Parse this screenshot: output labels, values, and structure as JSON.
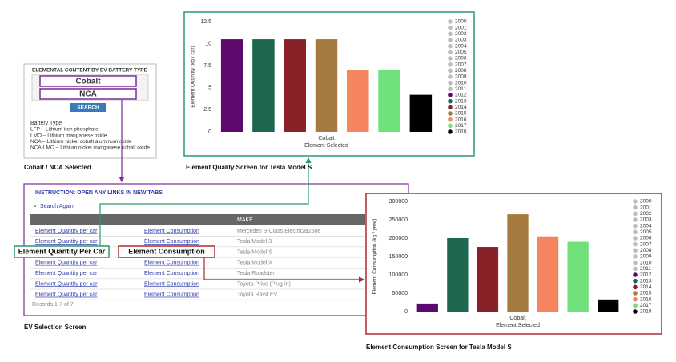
{
  "search_panel": {
    "title": "ELEMENTAL CONTENT BY EV BATTERY TYPE",
    "fields": [
      "Cobalt",
      "NCA"
    ],
    "button": "SEARCH",
    "legend_title": "Battery Type",
    "legend_items": [
      "LFP – Lithium iron phosphate",
      "LMO – Lithium manganese oxide",
      "NCA – Lithium nickel cobalt aluminum oxide",
      "NCA-LMO – Lithium nickel manganese cobalt oxide"
    ],
    "caption": "Cobalt / NCA Selected"
  },
  "table_panel": {
    "instruction": "INSTRUCTION:  OPEN ANY LINKS IN NEW TABS",
    "search_again": "Search Again",
    "header_make": "MAKE",
    "rows": [
      [
        "Element Quantity per car",
        "Element Consumption",
        "Mercedes B-Class Electric/B250e"
      ],
      [
        "Element Quantity per car",
        "Element Consumption",
        "Tesla Model 3"
      ],
      [
        "Element Quantity per car",
        "Element Consumption",
        "Tesla Model S"
      ],
      [
        "Element Quantity per car",
        "Element Consumption",
        "Tesla Model X"
      ],
      [
        "Element Quantity per car",
        "Element Consumption",
        "Tesla Roadster"
      ],
      [
        "Element Quantity per car",
        "Element Consumption",
        "Toyota Prius (Plug-in)"
      ],
      [
        "Element Quantity per car",
        "Element Consumption",
        "Toyota Rav4 EV"
      ]
    ],
    "footer": "Records 1-7 of 7",
    "caption": "EV Selection Screen"
  },
  "callouts": [
    "Element Quantity Per Car",
    "Element Consumption"
  ],
  "chart_data": [
    {
      "type": "bar",
      "caption": "Element Quality Screen for Tesla Model S",
      "categories": [
        "Cobalt"
      ],
      "x_label": "Element Selected",
      "y_label": "Element Quantity (kg / car)",
      "ylim": [
        0,
        12.5
      ],
      "yticks": [
        0,
        2.5,
        5,
        7.5,
        10,
        12.5
      ],
      "grid": false,
      "legend": "right",
      "series": [
        {
          "name": "2000",
          "color": "#bdbdbd",
          "values": [
            null
          ]
        },
        {
          "name": "2001",
          "color": "#bdbdbd",
          "values": [
            null
          ]
        },
        {
          "name": "2002",
          "color": "#bdbdbd",
          "values": [
            null
          ]
        },
        {
          "name": "2003",
          "color": "#bdbdbd",
          "values": [
            null
          ]
        },
        {
          "name": "2004",
          "color": "#bdbdbd",
          "values": [
            null
          ]
        },
        {
          "name": "2005",
          "color": "#bdbdbd",
          "values": [
            null
          ]
        },
        {
          "name": "2006",
          "color": "#bdbdbd",
          "values": [
            null
          ]
        },
        {
          "name": "2007",
          "color": "#bdbdbd",
          "values": [
            null
          ]
        },
        {
          "name": "2008",
          "color": "#bdbdbd",
          "values": [
            null
          ]
        },
        {
          "name": "2009",
          "color": "#bdbdbd",
          "values": [
            null
          ]
        },
        {
          "name": "2010",
          "color": "#bdbdbd",
          "values": [
            null
          ]
        },
        {
          "name": "2011",
          "color": "#bdbdbd",
          "values": [
            null
          ]
        },
        {
          "name": "2012",
          "color": "#5c0a6e",
          "values": [
            10.5
          ]
        },
        {
          "name": "2013",
          "color": "#1e6650",
          "values": [
            10.5
          ]
        },
        {
          "name": "2014",
          "color": "#8b2128",
          "values": [
            10.5
          ]
        },
        {
          "name": "2015",
          "color": "#a57a3f",
          "values": [
            10.5
          ]
        },
        {
          "name": "2016",
          "color": "#f4855f",
          "values": [
            7.0
          ]
        },
        {
          "name": "2017",
          "color": "#6fe07a",
          "values": [
            7.0
          ]
        },
        {
          "name": "2018",
          "color": "#000000",
          "values": [
            4.2
          ]
        }
      ]
    },
    {
      "type": "bar",
      "caption": "Element Consumption Screen for Tesla Model S",
      "categories": [
        "Cobalt"
      ],
      "x_label": "Element Selected",
      "y_label": "Element Consumption (kg / year)",
      "ylim": [
        0,
        300000
      ],
      "yticks": [
        0,
        50000,
        100000,
        150000,
        200000,
        250000,
        300000
      ],
      "grid": false,
      "legend": "right",
      "series": [
        {
          "name": "2000",
          "color": "#bdbdbd",
          "values": [
            null
          ]
        },
        {
          "name": "2001",
          "color": "#bdbdbd",
          "values": [
            null
          ]
        },
        {
          "name": "2002",
          "color": "#bdbdbd",
          "values": [
            null
          ]
        },
        {
          "name": "2003",
          "color": "#bdbdbd",
          "values": [
            null
          ]
        },
        {
          "name": "2004",
          "color": "#bdbdbd",
          "values": [
            null
          ]
        },
        {
          "name": "2005",
          "color": "#bdbdbd",
          "values": [
            null
          ]
        },
        {
          "name": "2006",
          "color": "#bdbdbd",
          "values": [
            null
          ]
        },
        {
          "name": "2007",
          "color": "#bdbdbd",
          "values": [
            null
          ]
        },
        {
          "name": "2008",
          "color": "#bdbdbd",
          "values": [
            null
          ]
        },
        {
          "name": "2009",
          "color": "#bdbdbd",
          "values": [
            null
          ]
        },
        {
          "name": "2010",
          "color": "#bdbdbd",
          "values": [
            null
          ]
        },
        {
          "name": "2011",
          "color": "#bdbdbd",
          "values": [
            null
          ]
        },
        {
          "name": "2012",
          "color": "#5c0a6e",
          "values": [
            22000
          ]
        },
        {
          "name": "2013",
          "color": "#1e6650",
          "values": [
            200000
          ]
        },
        {
          "name": "2014",
          "color": "#8b2128",
          "values": [
            176000
          ]
        },
        {
          "name": "2015",
          "color": "#a57a3f",
          "values": [
            265000
          ]
        },
        {
          "name": "2016",
          "color": "#f4855f",
          "values": [
            205000
          ]
        },
        {
          "name": "2017",
          "color": "#6fe07a",
          "values": [
            190000
          ]
        },
        {
          "name": "2018",
          "color": "#000000",
          "values": [
            33000
          ]
        }
      ]
    }
  ]
}
